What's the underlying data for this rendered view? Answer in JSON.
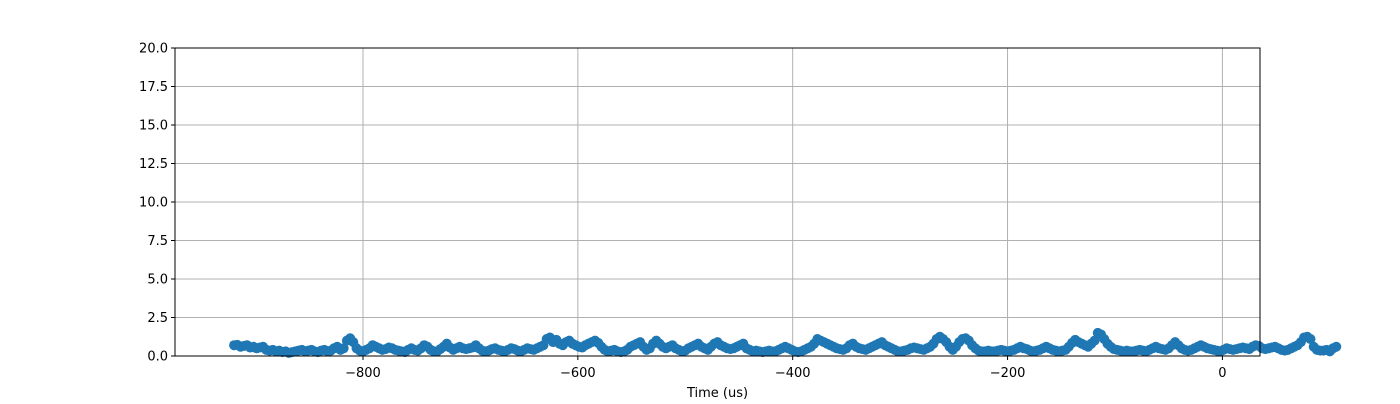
{
  "chart_data": {
    "type": "scatter",
    "title": "",
    "xlabel": "Time (us)",
    "ylabel": "",
    "xlim": [
      -975,
      35
    ],
    "ylim": [
      0,
      20
    ],
    "x_ticks": [
      -800,
      -600,
      -400,
      -200,
      0
    ],
    "x_tick_labels": [
      "−800",
      "−600",
      "−400",
      "−200",
      "0"
    ],
    "y_ticks": [
      0,
      2.5,
      5,
      7.5,
      10,
      12.5,
      15,
      17.5,
      20
    ],
    "y_tick_labels": [
      "0.0",
      "2.5",
      "5.0",
      "7.5",
      "10.0",
      "12.5",
      "15.0",
      "17.5",
      "20.0"
    ],
    "grid": true,
    "legend": "none",
    "marker_color": "#1f77b4",
    "grid_color": "#b0b0b0",
    "series": [
      {
        "x_start": -920,
        "x_step": 3,
        "values": [
          0.7,
          0.72,
          0.6,
          0.65,
          0.7,
          0.55,
          0.6,
          0.5,
          0.55,
          0.6,
          0.4,
          0.35,
          0.4,
          0.3,
          0.35,
          0.25,
          0.3,
          0.2,
          0.25,
          0.3,
          0.35,
          0.4,
          0.3,
          0.35,
          0.4,
          0.3,
          0.25,
          0.35,
          0.4,
          0.3,
          0.35,
          0.5,
          0.6,
          0.4,
          0.5,
          1.0,
          1.15,
          0.9,
          0.5,
          0.35,
          0.3,
          0.4,
          0.5,
          0.7,
          0.6,
          0.5,
          0.4,
          0.45,
          0.55,
          0.5,
          0.4,
          0.35,
          0.3,
          0.25,
          0.4,
          0.5,
          0.4,
          0.35,
          0.5,
          0.7,
          0.6,
          0.4,
          0.3,
          0.3,
          0.45,
          0.6,
          0.8,
          0.55,
          0.4,
          0.5,
          0.6,
          0.5,
          0.45,
          0.5,
          0.55,
          0.7,
          0.5,
          0.35,
          0.3,
          0.35,
          0.45,
          0.5,
          0.4,
          0.35,
          0.3,
          0.4,
          0.5,
          0.45,
          0.35,
          0.3,
          0.4,
          0.5,
          0.45,
          0.4,
          0.5,
          0.6,
          0.7,
          1.1,
          1.2,
          0.9,
          1.05,
          0.8,
          0.7,
          0.9,
          1.0,
          0.8,
          0.7,
          0.6,
          0.55,
          0.7,
          0.8,
          0.9,
          1.0,
          0.85,
          0.6,
          0.4,
          0.3,
          0.35,
          0.4,
          0.3,
          0.25,
          0.3,
          0.4,
          0.6,
          0.7,
          0.8,
          0.9,
          0.6,
          0.4,
          0.5,
          0.8,
          1.0,
          0.8,
          0.6,
          0.5,
          0.6,
          0.7,
          0.5,
          0.4,
          0.3,
          0.35,
          0.5,
          0.6,
          0.7,
          0.8,
          0.6,
          0.5,
          0.4,
          0.6,
          0.8,
          0.9,
          0.7,
          0.6,
          0.5,
          0.45,
          0.5,
          0.6,
          0.7,
          0.8,
          0.5,
          0.4,
          0.3,
          0.35,
          0.3,
          0.25,
          0.3,
          0.35,
          0.3,
          0.3,
          0.4,
          0.5,
          0.6,
          0.5,
          0.4,
          0.3,
          0.25,
          0.3,
          0.4,
          0.5,
          0.6,
          0.8,
          1.1,
          1.0,
          0.9,
          0.8,
          0.7,
          0.6,
          0.5,
          0.45,
          0.4,
          0.5,
          0.7,
          0.8,
          0.6,
          0.5,
          0.45,
          0.4,
          0.5,
          0.6,
          0.7,
          0.8,
          0.9,
          0.7,
          0.6,
          0.5,
          0.4,
          0.3,
          0.3,
          0.35,
          0.4,
          0.5,
          0.55,
          0.5,
          0.45,
          0.4,
          0.5,
          0.6,
          0.8,
          1.1,
          1.25,
          1.1,
          0.9,
          0.6,
          0.4,
          0.6,
          0.9,
          1.1,
          1.15,
          1.0,
          0.7,
          0.5,
          0.35,
          0.3,
          0.3,
          0.35,
          0.3,
          0.3,
          0.35,
          0.4,
          0.35,
          0.3,
          0.35,
          0.4,
          0.5,
          0.6,
          0.5,
          0.45,
          0.35,
          0.3,
          0.35,
          0.4,
          0.5,
          0.6,
          0.5,
          0.4,
          0.35,
          0.3,
          0.35,
          0.4,
          0.6,
          0.85,
          1.05,
          0.9,
          0.8,
          0.7,
          0.6,
          0.8,
          1.0,
          1.5,
          1.4,
          1.1,
          0.8,
          0.6,
          0.45,
          0.4,
          0.35,
          0.3,
          0.35,
          0.3,
          0.3,
          0.35,
          0.4,
          0.35,
          0.3,
          0.4,
          0.5,
          0.6,
          0.5,
          0.45,
          0.4,
          0.5,
          0.7,
          0.9,
          0.7,
          0.5,
          0.4,
          0.35,
          0.4,
          0.5,
          0.6,
          0.7,
          0.6,
          0.5,
          0.45,
          0.4,
          0.35,
          0.3,
          0.4,
          0.5,
          0.45,
          0.4,
          0.45,
          0.5,
          0.55,
          0.5,
          0.45,
          0.6,
          0.7,
          0.65,
          0.5,
          0.45,
          0.5,
          0.55,
          0.6,
          0.5,
          0.4,
          0.35,
          0.4,
          0.5,
          0.6,
          0.7,
          0.9,
          1.2,
          1.25,
          1.1,
          0.6,
          0.4,
          0.35,
          0.35,
          0.4,
          0.3,
          0.5,
          0.6
        ]
      }
    ]
  }
}
